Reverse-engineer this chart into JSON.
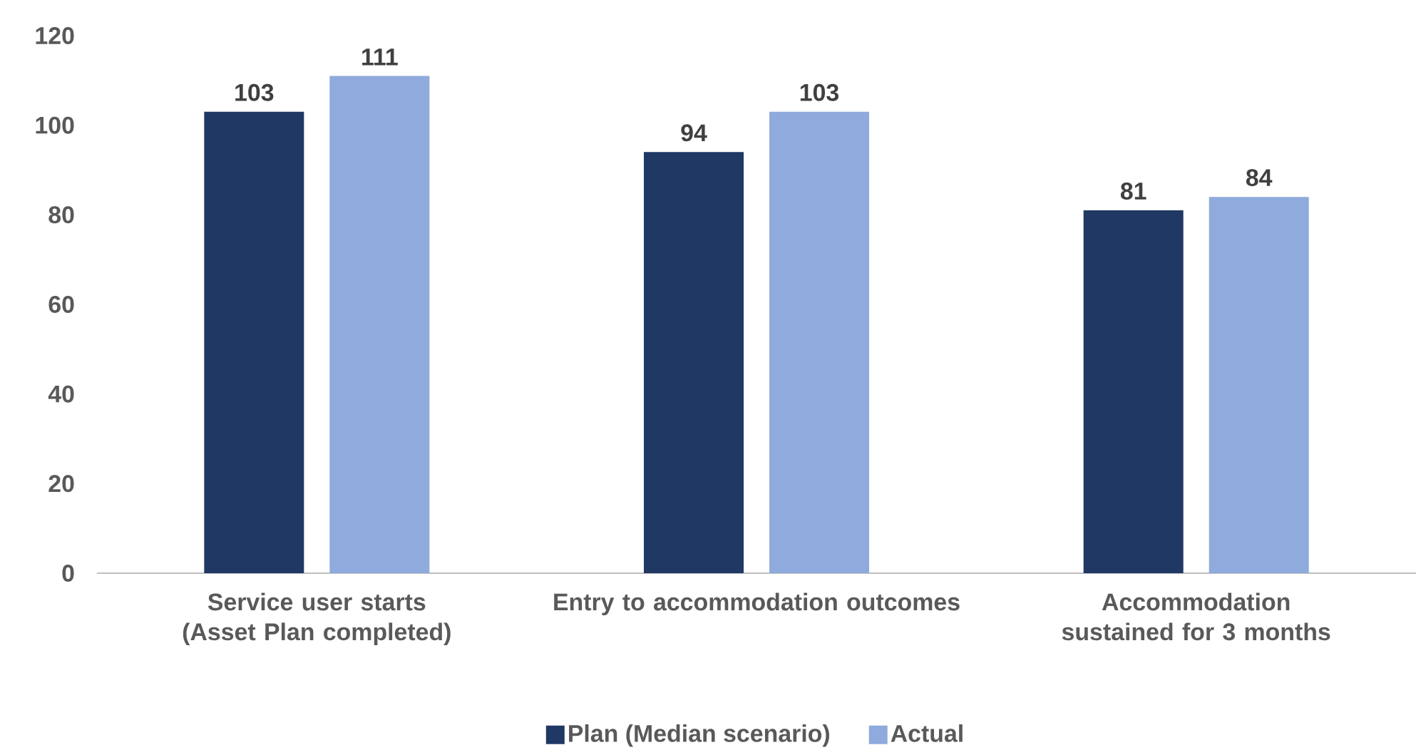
{
  "chart_data": {
    "type": "bar",
    "categories": [
      "Service user starts (Asset Plan completed)",
      "Entry to accommodation outcomes",
      "Accommodation sustained for 3 months"
    ],
    "series": [
      {
        "name": "Plan (Median scenario)",
        "color": "#203864",
        "values": [
          103,
          94,
          81
        ]
      },
      {
        "name": "Actual",
        "color": "#8faadc",
        "values": [
          111,
          103,
          84
        ]
      }
    ],
    "ylim": [
      0,
      120
    ],
    "yticks": [
      0,
      20,
      40,
      60,
      80,
      100,
      120
    ],
    "grid": false,
    "legend": "bottom",
    "data_labels": true
  }
}
